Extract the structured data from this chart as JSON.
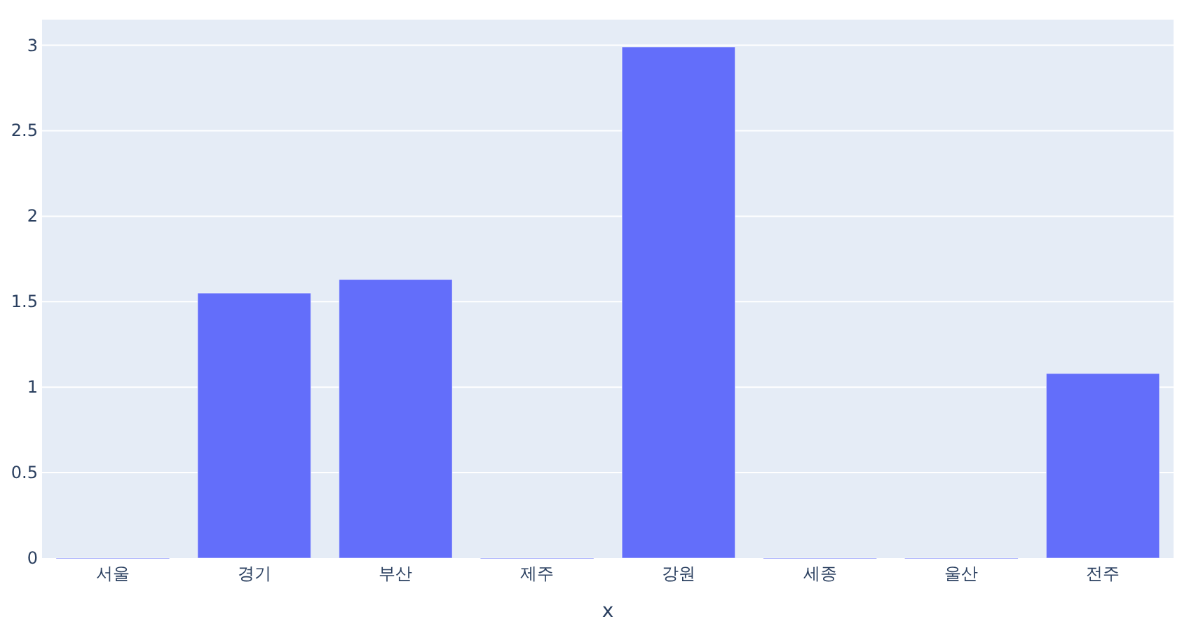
{
  "chart_data": {
    "type": "bar",
    "xlabel": "x",
    "categories": [
      "서울",
      "경기",
      "부산",
      "제주",
      "강원",
      "세종",
      "울산",
      "전주"
    ],
    "values": [
      0,
      1.55,
      1.63,
      0,
      2.99,
      0,
      0,
      1.08
    ],
    "color": "#636efa",
    "ylim": [
      0,
      3.15
    ],
    "yticks": [
      0,
      0.5,
      1,
      1.5,
      2,
      2.5,
      3
    ],
    "grid": "y"
  }
}
